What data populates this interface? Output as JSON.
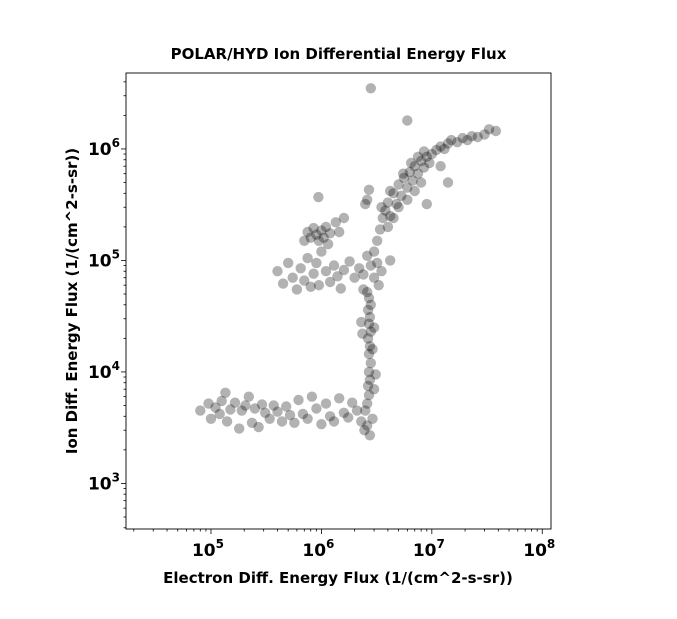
{
  "chart_data": {
    "type": "scatter",
    "title": "POLAR/HYD  Ion Differential Energy Flux",
    "xlabel": "Electron Diff. Energy Flux (1/(cm^2-s-sr))",
    "ylabel": "Ion Diff. Energy Flux (1/(cm^2-s-sr))",
    "xscale": "log",
    "yscale": "log",
    "xlim": [
      17000,
      120000000
    ],
    "ylim": [
      390,
      4800000
    ],
    "x_ticks": [
      {
        "value": 100000,
        "base": "10",
        "exp": "5"
      },
      {
        "value": 1000000,
        "base": "10",
        "exp": "6"
      },
      {
        "value": 10000000,
        "base": "10",
        "exp": "7"
      },
      {
        "value": 100000000,
        "base": "10",
        "exp": "8"
      }
    ],
    "y_ticks": [
      {
        "value": 1000,
        "base": "10",
        "exp": "3"
      },
      {
        "value": 10000,
        "base": "10",
        "exp": "4"
      },
      {
        "value": 100000,
        "base": "10",
        "exp": "5"
      },
      {
        "value": 1000000,
        "base": "10",
        "exp": "6"
      }
    ],
    "marker_color": "#000000",
    "marker_alpha": 0.3,
    "grid": false,
    "points": [
      [
        80000,
        4500
      ],
      [
        95000,
        5200
      ],
      [
        100000,
        3800
      ],
      [
        110000,
        4800
      ],
      [
        120000,
        4200
      ],
      [
        125000,
        5500
      ],
      [
        135000,
        6500
      ],
      [
        140000,
        3600
      ],
      [
        150000,
        4600
      ],
      [
        165000,
        5300
      ],
      [
        180000,
        3100
      ],
      [
        190000,
        4500
      ],
      [
        205000,
        5000
      ],
      [
        220000,
        6000
      ],
      [
        235000,
        3500
      ],
      [
        250000,
        4700
      ],
      [
        270000,
        3200
      ],
      [
        290000,
        5100
      ],
      [
        310000,
        4300
      ],
      [
        340000,
        3800
      ],
      [
        370000,
        5000
      ],
      [
        400000,
        4400
      ],
      [
        440000,
        3600
      ],
      [
        480000,
        4900
      ],
      [
        520000,
        4100
      ],
      [
        570000,
        3500
      ],
      [
        620000,
        5600
      ],
      [
        680000,
        4200
      ],
      [
        750000,
        3800
      ],
      [
        820000,
        6000
      ],
      [
        900000,
        4700
      ],
      [
        1000000,
        3400
      ],
      [
        1100000,
        5200
      ],
      [
        1200000,
        4000
      ],
      [
        1300000,
        3600
      ],
      [
        1450000,
        5800
      ],
      [
        1600000,
        4300
      ],
      [
        1750000,
        3900
      ],
      [
        1900000,
        5300
      ],
      [
        2100000,
        4500
      ],
      [
        2300000,
        3600
      ],
      [
        2450000,
        3000
      ],
      [
        2600000,
        3300
      ],
      [
        2750000,
        2700
      ],
      [
        2900000,
        3800
      ],
      [
        2500000,
        4500
      ],
      [
        2600000,
        5200
      ],
      [
        2700000,
        6200
      ],
      [
        2650000,
        7500
      ],
      [
        2750000,
        8500
      ],
      [
        2700000,
        10000
      ],
      [
        2800000,
        12000
      ],
      [
        2700000,
        14500
      ],
      [
        2750000,
        17000
      ],
      [
        2650000,
        20000
      ],
      [
        2800000,
        23000
      ],
      [
        2700000,
        27000
      ],
      [
        2750000,
        31000
      ],
      [
        2650000,
        36000
      ],
      [
        2800000,
        40000
      ],
      [
        2700000,
        46000
      ],
      [
        2600000,
        52000
      ],
      [
        2400000,
        55000
      ],
      [
        2300000,
        28000
      ],
      [
        2350000,
        22000
      ],
      [
        3000000,
        7000
      ],
      [
        3100000,
        9500
      ],
      [
        2900000,
        16000
      ],
      [
        3000000,
        25000
      ],
      [
        400000,
        80000
      ],
      [
        450000,
        62000
      ],
      [
        500000,
        95000
      ],
      [
        550000,
        70000
      ],
      [
        600000,
        55000
      ],
      [
        650000,
        85000
      ],
      [
        700000,
        66000
      ],
      [
        750000,
        105000
      ],
      [
        800000,
        58000
      ],
      [
        850000,
        76000
      ],
      [
        900000,
        95000
      ],
      [
        950000,
        60000
      ],
      [
        1000000,
        120000
      ],
      [
        1100000,
        80000
      ],
      [
        1200000,
        64000
      ],
      [
        1300000,
        90000
      ],
      [
        1400000,
        72000
      ],
      [
        1500000,
        56000
      ],
      [
        1600000,
        82000
      ],
      [
        1800000,
        98000
      ],
      [
        2000000,
        70000
      ],
      [
        2200000,
        85000
      ],
      [
        2400000,
        75000
      ],
      [
        2600000,
        110000
      ],
      [
        2800000,
        90000
      ],
      [
        3000000,
        70000
      ],
      [
        3200000,
        95000
      ],
      [
        3500000,
        80000
      ],
      [
        700000,
        150000
      ],
      [
        750000,
        180000
      ],
      [
        800000,
        160000
      ],
      [
        850000,
        195000
      ],
      [
        900000,
        170000
      ],
      [
        950000,
        150000
      ],
      [
        1000000,
        185000
      ],
      [
        1050000,
        160000
      ],
      [
        1100000,
        200000
      ],
      [
        1150000,
        140000
      ],
      [
        1200000,
        175000
      ],
      [
        940000,
        370000
      ],
      [
        1350000,
        220000
      ],
      [
        1450000,
        180000
      ],
      [
        1600000,
        240000
      ],
      [
        2700000,
        430000
      ],
      [
        2600000,
        350000
      ],
      [
        2500000,
        320000
      ],
      [
        2800000,
        3500000
      ],
      [
        3000000,
        120000
      ],
      [
        3200000,
        150000
      ],
      [
        3400000,
        190000
      ],
      [
        3600000,
        240000
      ],
      [
        3800000,
        280000
      ],
      [
        4000000,
        330000
      ],
      [
        4200000,
        250000
      ],
      [
        4500000,
        400000
      ],
      [
        4800000,
        320000
      ],
      [
        5000000,
        480000
      ],
      [
        5300000,
        380000
      ],
      [
        5600000,
        550000
      ],
      [
        6000000,
        450000
      ],
      [
        6300000,
        620000
      ],
      [
        6700000,
        520000
      ],
      [
        7000000,
        700000
      ],
      [
        7500000,
        600000
      ],
      [
        8000000,
        780000
      ],
      [
        8500000,
        680000
      ],
      [
        9000000,
        850000
      ],
      [
        9500000,
        750000
      ],
      [
        10000000,
        900000
      ],
      [
        11000000,
        980000
      ],
      [
        12000000,
        1050000
      ],
      [
        13000000,
        1000000
      ],
      [
        14000000,
        1120000
      ],
      [
        15000000,
        1200000
      ],
      [
        17000000,
        1150000
      ],
      [
        19000000,
        1250000
      ],
      [
        21000000,
        1200000
      ],
      [
        23000000,
        1300000
      ],
      [
        26000000,
        1280000
      ],
      [
        30000000,
        1350000
      ],
      [
        33000000,
        1500000
      ],
      [
        38000000,
        1450000
      ],
      [
        4000000,
        200000
      ],
      [
        4500000,
        240000
      ],
      [
        5000000,
        300000
      ],
      [
        6000000,
        350000
      ],
      [
        7000000,
        420000
      ],
      [
        8000000,
        500000
      ],
      [
        3500000,
        300000
      ],
      [
        4200000,
        420000
      ],
      [
        5500000,
        600000
      ],
      [
        6500000,
        750000
      ],
      [
        7500000,
        850000
      ],
      [
        8500000,
        950000
      ],
      [
        6000000,
        1800000
      ],
      [
        12000000,
        700000
      ],
      [
        9000000,
        320000
      ],
      [
        14000000,
        500000
      ],
      [
        3300000,
        60000
      ],
      [
        4200000,
        100000
      ]
    ]
  }
}
